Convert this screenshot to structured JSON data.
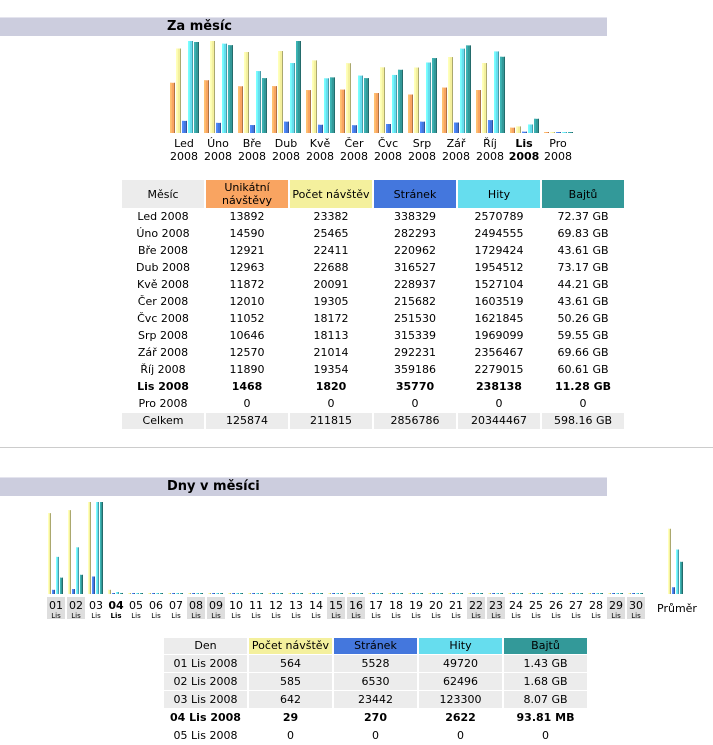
{
  "monthly": {
    "title": "Za měsíc",
    "headers": [
      "Měsíc",
      "Unikátní návštěvy",
      "Počet návštěv",
      "Stránek",
      "Hity",
      "Bajtů"
    ],
    "rows": [
      [
        "Led 2008",
        "13892",
        "23382",
        "338329",
        "2570789",
        "72.37 GB"
      ],
      [
        "Úno 2008",
        "14590",
        "25465",
        "282293",
        "2494555",
        "69.83 GB"
      ],
      [
        "Bře 2008",
        "12921",
        "22411",
        "220962",
        "1729424",
        "43.61 GB"
      ],
      [
        "Dub 2008",
        "12963",
        "22688",
        "316527",
        "1954512",
        "73.17 GB"
      ],
      [
        "Kvě 2008",
        "11872",
        "20091",
        "228937",
        "1527104",
        "44.21 GB"
      ],
      [
        "Čer 2008",
        "12010",
        "19305",
        "215682",
        "1603519",
        "43.61 GB"
      ],
      [
        "Čvc 2008",
        "11052",
        "18172",
        "251530",
        "1621845",
        "50.26 GB"
      ],
      [
        "Srp 2008",
        "10646",
        "18113",
        "315339",
        "1969099",
        "59.55 GB"
      ],
      [
        "Zář 2008",
        "12570",
        "21014",
        "292231",
        "2356467",
        "69.66 GB"
      ],
      [
        "Říj 2008",
        "11890",
        "19354",
        "359186",
        "2279015",
        "60.61 GB"
      ],
      [
        "Lis 2008",
        "1468",
        "1820",
        "35770",
        "238138",
        "11.28 GB"
      ],
      [
        "Pro 2008",
        "0",
        "0",
        "0",
        "0",
        "0"
      ]
    ],
    "current_index": 10,
    "total": [
      "Celkem",
      "125874",
      "211815",
      "2856786",
      "20344467",
      "598.16 GB"
    ]
  },
  "daily": {
    "title": "Dny v měsíci",
    "headers": [
      "Den",
      "Počet návštěv",
      "Stránek",
      "Hity",
      "Bajtů"
    ],
    "rows": [
      [
        "01 Lis 2008",
        "564",
        "5528",
        "49720",
        "1.43 GB"
      ],
      [
        "02 Lis 2008",
        "585",
        "6530",
        "62496",
        "1.68 GB"
      ],
      [
        "03 Lis 2008",
        "642",
        "23442",
        "123300",
        "8.07 GB"
      ],
      [
        "04 Lis 2008",
        "29",
        "270",
        "2622",
        "93.81 MB"
      ],
      [
        "05 Lis 2008",
        "0",
        "0",
        "0",
        "0"
      ]
    ],
    "current_index": 3
  },
  "chart_data": [
    {
      "type": "bar",
      "categories": [
        "Led",
        "Úno",
        "Bře",
        "Dub",
        "Kvě",
        "Čer",
        "Čvc",
        "Srp",
        "Zář",
        "Říj",
        "Lis",
        "Pro"
      ],
      "year": "2008",
      "current_index": 10,
      "series": [
        {
          "values": [
            13892,
            14590,
            12921,
            12963,
            11872,
            12010,
            11052,
            10646,
            12570,
            11890,
            1468,
            0
          ],
          "color": "#f9a461"
        },
        {
          "values": [
            23382,
            25465,
            22411,
            22688,
            20091,
            19305,
            18172,
            18113,
            21014,
            19354,
            1820,
            0
          ],
          "color": "#f4f09d"
        },
        {
          "values": [
            338329,
            282293,
            220962,
            316527,
            228937,
            215682,
            251530,
            315339,
            292231,
            359186,
            35770,
            0
          ],
          "color": "#4477dd"
        },
        {
          "values": [
            2570789,
            2494555,
            1729424,
            1954512,
            1527104,
            1603519,
            1621845,
            1969099,
            2356467,
            2279015,
            238138,
            0
          ],
          "color": "#66ddee"
        },
        {
          "values": [
            72.37,
            69.83,
            43.61,
            73.17,
            44.21,
            43.61,
            50.26,
            59.55,
            69.66,
            60.61,
            11.28,
            0
          ],
          "color": "#339999"
        }
      ],
      "groups": [
        [
          0,
          1
        ],
        [
          2,
          3
        ],
        [
          4
        ]
      ]
    },
    {
      "type": "bar",
      "categories": [
        "01",
        "02",
        "03",
        "04",
        "05",
        "06",
        "07",
        "08",
        "09",
        "10",
        "11",
        "12",
        "13",
        "14",
        "15",
        "16",
        "17",
        "18",
        "19",
        "20",
        "21",
        "22",
        "23",
        "24",
        "25",
        "26",
        "27",
        "28",
        "29",
        "30"
      ],
      "sub_label": "Lis",
      "weekend_indices": [
        0,
        1,
        7,
        8,
        14,
        15,
        21,
        22,
        28,
        29
      ],
      "current_index": 3,
      "average_label": "Průměr",
      "series": [
        {
          "values": [
            564,
            585,
            642,
            29,
            0,
            0,
            0,
            0,
            0,
            0,
            0,
            0,
            0,
            0,
            0,
            0,
            0,
            0,
            0,
            0,
            0,
            0,
            0,
            0,
            0,
            0,
            0,
            0,
            0,
            0
          ],
          "average": 455,
          "color": "#f4f09d"
        },
        {
          "values": [
            5528,
            6530,
            23442,
            270,
            0,
            0,
            0,
            0,
            0,
            0,
            0,
            0,
            0,
            0,
            0,
            0,
            0,
            0,
            0,
            0,
            0,
            0,
            0,
            0,
            0,
            0,
            0,
            0,
            0,
            0
          ],
          "average": 8943,
          "color": "#4477dd"
        },
        {
          "values": [
            49720,
            62496,
            123300,
            2622,
            0,
            0,
            0,
            0,
            0,
            0,
            0,
            0,
            0,
            0,
            0,
            0,
            0,
            0,
            0,
            0,
            0,
            0,
            0,
            0,
            0,
            0,
            0,
            0,
            0,
            0
          ],
          "average": 59535,
          "color": "#66ddee"
        },
        {
          "values": [
            1.43,
            1.68,
            8.07,
            0.09,
            0,
            0,
            0,
            0,
            0,
            0,
            0,
            0,
            0,
            0,
            0,
            0,
            0,
            0,
            0,
            0,
            0,
            0,
            0,
            0,
            0,
            0,
            0,
            0,
            0,
            0
          ],
          "average": 2.82,
          "color": "#339999"
        }
      ],
      "groups": [
        [
          0
        ],
        [
          1,
          2
        ],
        [
          3
        ]
      ]
    }
  ]
}
